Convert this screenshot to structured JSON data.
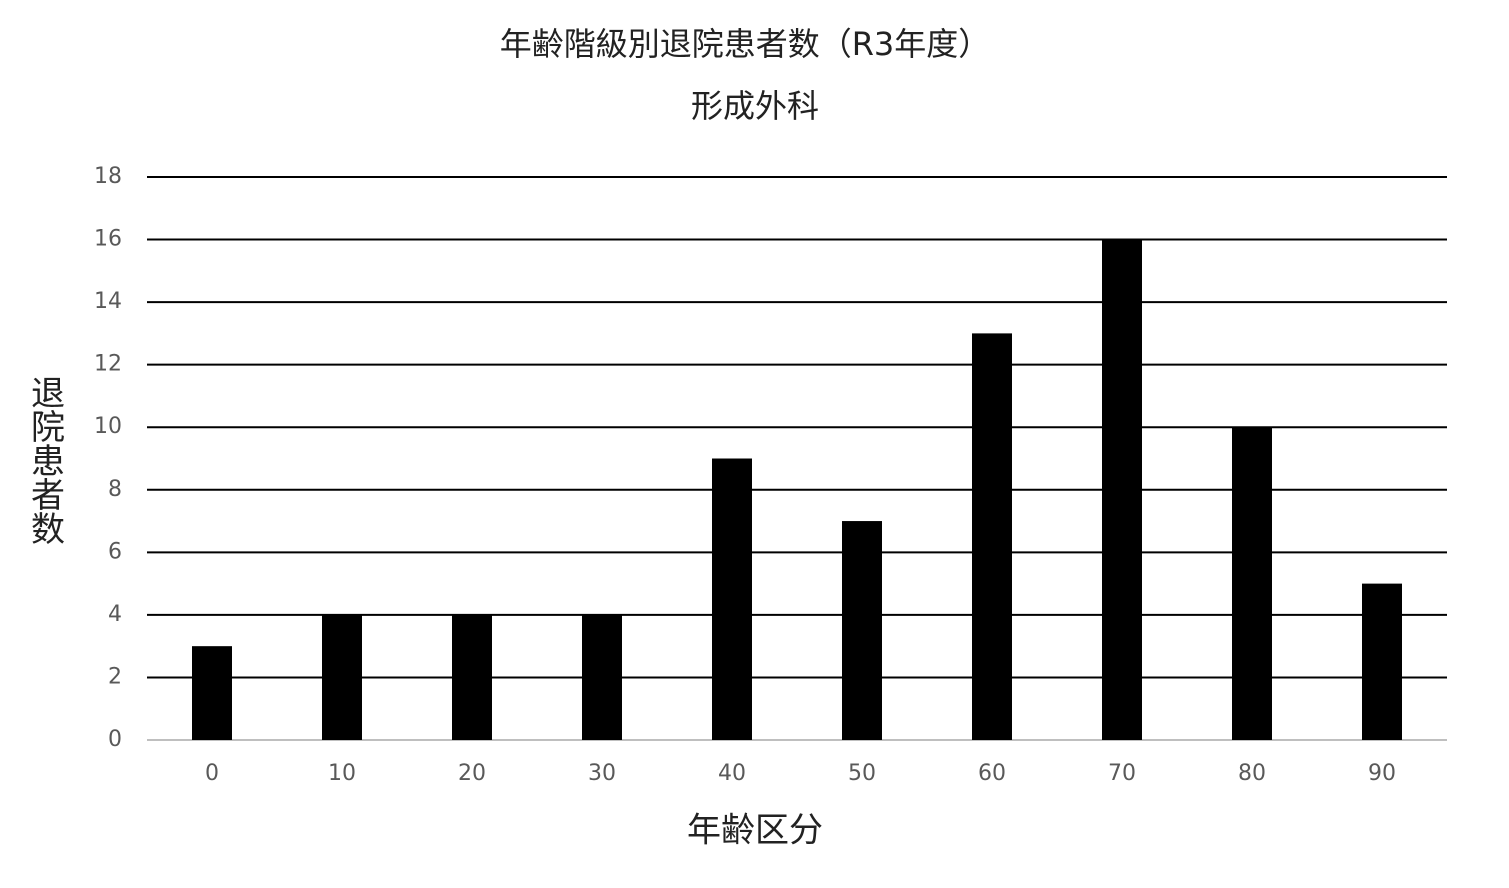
{
  "chart_data": {
    "type": "bar",
    "title": "年齢階級別退院患者数（R3年度）",
    "subtitle": "形成外科",
    "x_label": "年齢区分",
    "y_label": "退院患者数",
    "categories": [
      "0",
      "10",
      "20",
      "30",
      "40",
      "50",
      "60",
      "70",
      "80",
      "90"
    ],
    "values": [
      3,
      4,
      4,
      4,
      9,
      7,
      13,
      16,
      10,
      5
    ],
    "color": "#000000",
    "ylim": [
      0,
      18
    ],
    "yticks": [
      0,
      2,
      4,
      6,
      8,
      10,
      12,
      14,
      16,
      18
    ],
    "grid": true
  }
}
